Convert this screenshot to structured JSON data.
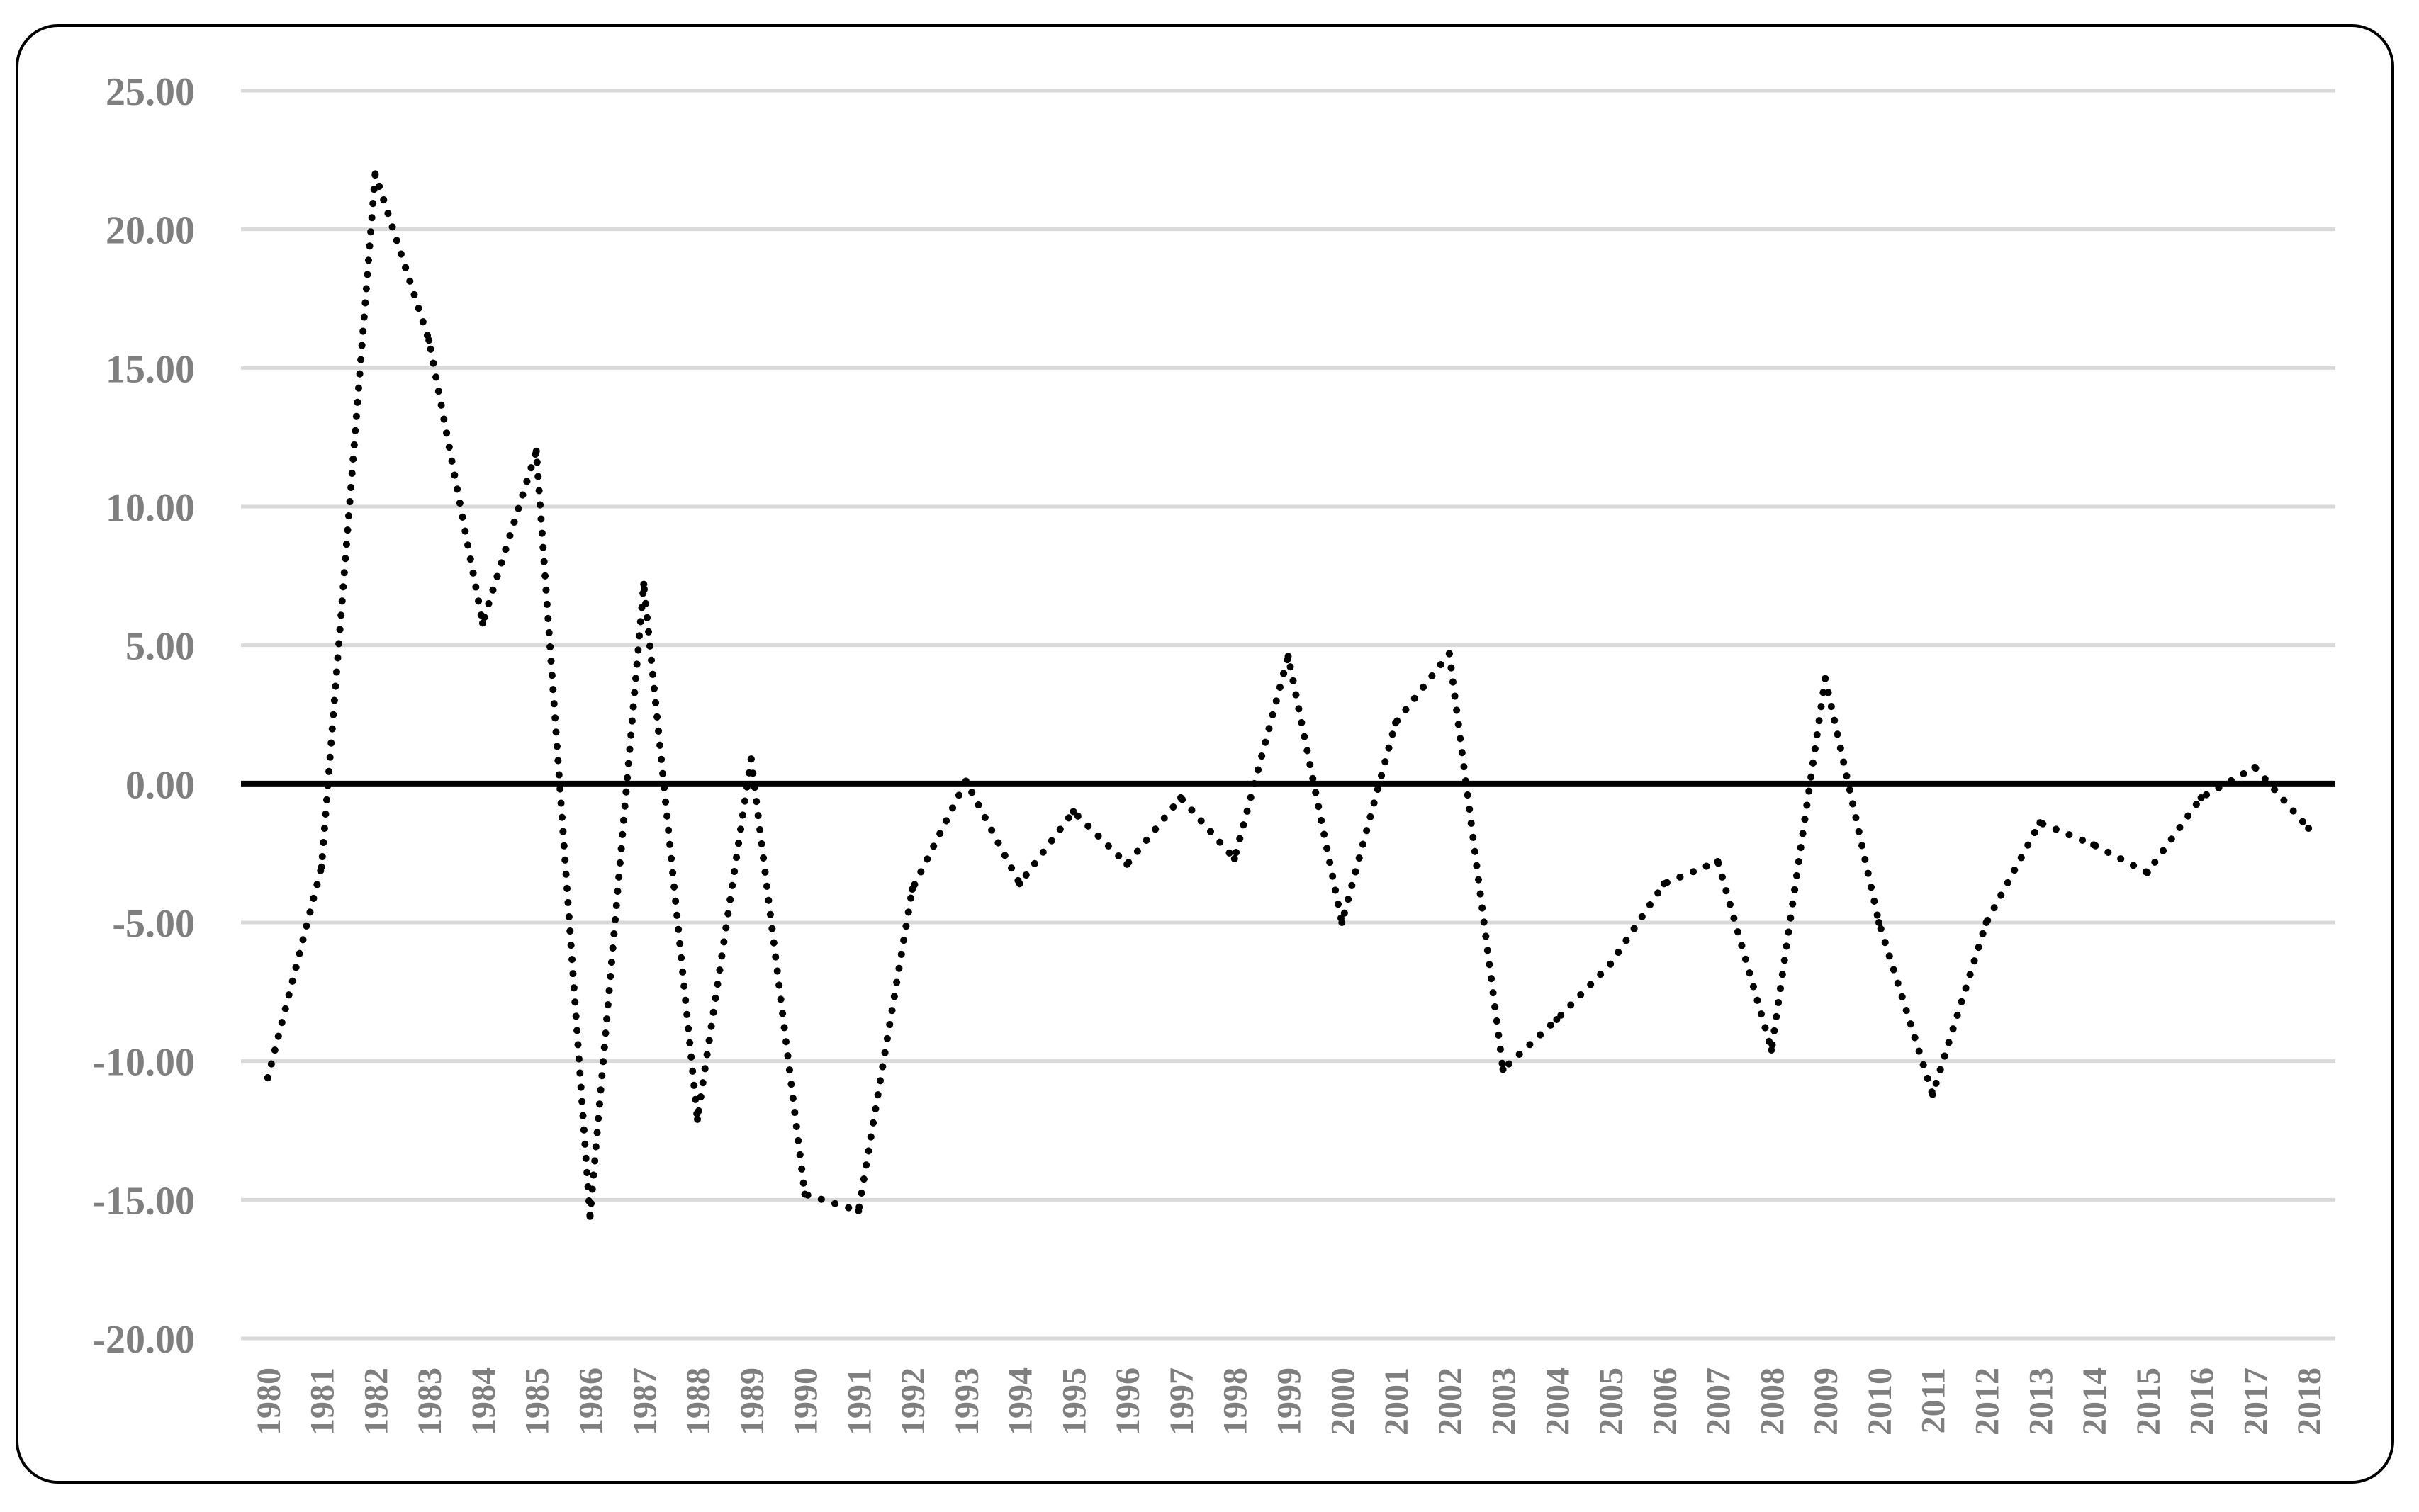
{
  "chart_data": {
    "type": "line",
    "title": "",
    "xlabel": "",
    "ylabel": "",
    "ylim": [
      -20,
      25
    ],
    "y_ticks": [
      "25.00",
      "20.00",
      "15.00",
      "10.00",
      "5.00",
      "0.00",
      "-5.00",
      "-10.00",
      "-15.00",
      "-20.00"
    ],
    "grid": true,
    "legend": "none",
    "line_style": "dotted",
    "line_color": "#000000",
    "grid_color": "#d9d9d9",
    "zero_line_color": "#000000",
    "categories": [
      "1980",
      "1981",
      "1982",
      "1983",
      "1984",
      "1985",
      "1986",
      "1987",
      "1988",
      "1989",
      "1990",
      "1991",
      "1992",
      "1993",
      "1994",
      "1995",
      "1996",
      "1997",
      "1998",
      "1999",
      "2000",
      "2001",
      "2002",
      "2003",
      "2004",
      "2005",
      "2006",
      "2007",
      "2008",
      "2009",
      "2010",
      "2011",
      "2012",
      "2013",
      "2014",
      "2015",
      "2016",
      "2017",
      "2018"
    ],
    "series": [
      {
        "values": [
          -10.6,
          -3.0,
          22.0,
          16.0,
          5.8,
          12.0,
          -15.6,
          7.2,
          -12.1,
          0.9,
          -14.8,
          -15.4,
          -3.8,
          0.1,
          -3.6,
          -1.0,
          -2.9,
          -0.5,
          -2.7,
          4.6,
          -5.0,
          2.2,
          4.7,
          -10.3,
          -8.5,
          -6.5,
          -3.6,
          -2.8,
          -9.6,
          3.8,
          -5.0,
          -11.2,
          -5.0,
          -1.4,
          -2.2,
          -3.2,
          -0.5,
          0.6,
          -1.6
        ]
      }
    ]
  }
}
